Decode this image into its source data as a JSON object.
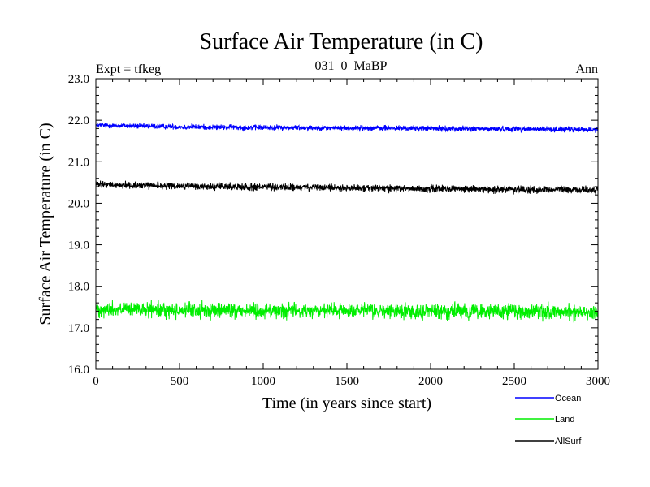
{
  "chart_data": {
    "type": "line",
    "title": "Surface Air Temperature (in C)",
    "subtitle": "031_0_MaBP",
    "experiment_label": "Expt = tfkeg",
    "period_label": "Ann",
    "xlabel": "Time (in years since start)",
    "ylabel": "Surface Air Temperature (in C)",
    "xlim": [
      0,
      3000
    ],
    "ylim": [
      16.0,
      23.0
    ],
    "x_ticks": [
      "0",
      "500",
      "1000",
      "1500",
      "2000",
      "2500",
      "3000"
    ],
    "y_ticks": [
      "16.0",
      "17.0",
      "18.0",
      "19.0",
      "20.0",
      "21.0",
      "22.0",
      "23.0"
    ],
    "grid": false,
    "legend_position": "bottom-right, below plot",
    "series": [
      {
        "name": "Ocean",
        "color": "#0000ff",
        "x": [
          0,
          250,
          500,
          750,
          1000,
          1250,
          1500,
          1750,
          2000,
          2250,
          2500,
          2750,
          3000
        ],
        "values": [
          21.88,
          21.86,
          21.84,
          21.83,
          21.82,
          21.82,
          21.81,
          21.81,
          21.8,
          21.79,
          21.79,
          21.78,
          21.77
        ],
        "noise_amplitude": 0.06
      },
      {
        "name": "Land",
        "color": "#00ee00",
        "x": [
          0,
          250,
          500,
          750,
          1000,
          1250,
          1500,
          1750,
          2000,
          2250,
          2500,
          2750,
          3000
        ],
        "values": [
          17.45,
          17.43,
          17.42,
          17.42,
          17.41,
          17.41,
          17.41,
          17.4,
          17.4,
          17.39,
          17.39,
          17.38,
          17.38
        ],
        "noise_amplitude": 0.17
      },
      {
        "name": "AllSurf",
        "color": "#000000",
        "x": [
          0,
          250,
          500,
          750,
          1000,
          1250,
          1500,
          1750,
          2000,
          2250,
          2500,
          2750,
          3000
        ],
        "values": [
          20.45,
          20.43,
          20.41,
          20.4,
          20.39,
          20.38,
          20.37,
          20.36,
          20.35,
          20.34,
          20.33,
          20.33,
          20.32
        ],
        "noise_amplitude": 0.08
      }
    ]
  }
}
